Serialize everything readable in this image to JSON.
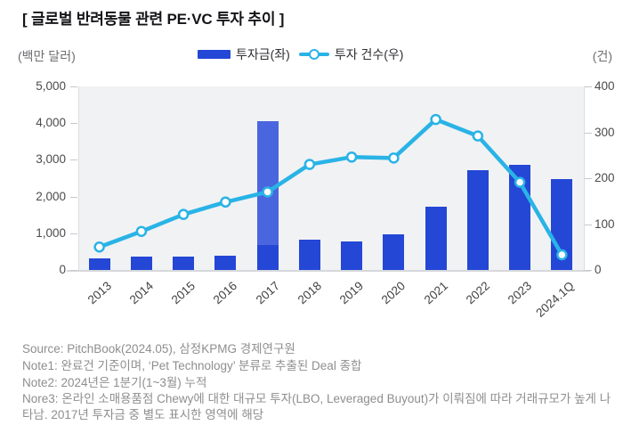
{
  "title": "[ 글로벌 반려동물 관련 PE·VC 투자 추이 ]",
  "axis_unit_left": "(백만 달러)",
  "axis_unit_right": "(건)",
  "legend": {
    "bar_label": "투자금(좌)",
    "line_label": "투자 건수(우)"
  },
  "colors": {
    "bar": "#2447d6",
    "bar_highlight": "#4a66de",
    "line": "#29b3e6",
    "marker_fill": "#ffffff",
    "plot_bg": "#f1f2f4",
    "axis_text": "#4b4b4d",
    "footer_text": "#8e8e90"
  },
  "chart_data": {
    "type": "bar",
    "subtype": "bar+line dual axis",
    "categories": [
      "2013",
      "2014",
      "2015",
      "2016",
      "2017",
      "2018",
      "2019",
      "2020",
      "2021",
      "2022",
      "2023",
      "2024.1Q"
    ],
    "series": [
      {
        "name": "투자금(좌)",
        "type": "bar",
        "axis": "left",
        "values": [
          310,
          360,
          360,
          380,
          4050,
          830,
          770,
          960,
          1730,
          2730,
          2860,
          2480
        ]
      },
      {
        "name": "투자 건수(우)",
        "type": "line",
        "axis": "right",
        "values": [
          50,
          84,
          121,
          148,
          170,
          230,
          246,
          244,
          328,
          292,
          191,
          33
        ]
      }
    ],
    "bar_2017_highlight": {
      "category": "2017",
      "base_value": 680
    },
    "left_axis": {
      "label": "(백만 달러)",
      "min": 0,
      "max": 5000,
      "ticks": [
        "5,000",
        "4,000",
        "3,000",
        "2,000",
        "1,000",
        "0"
      ]
    },
    "right_axis": {
      "label": "(건)",
      "min": 0,
      "max": 400,
      "ticks": [
        "400",
        "300",
        "200",
        "100",
        "0"
      ]
    },
    "grid": false,
    "legend_position": "top-center"
  },
  "footer": {
    "lines": [
      "Source: PitchBook(2024.05), 삼정KPMG 경제연구원",
      "Note1: 완료건 기준이며, ‘Pet Technology’ 분류로 추출된 Deal 종합",
      "Note2: 2024년은 1분기(1~3월) 누적",
      "Nore3: 온라인 소매용품점 Chewy에 대한 대규모 투자(LBO, Leveraged Buyout)가 이뤄짐에 따라 거래규모가 높게 나타남. 2017년 투자금 중 별도 표시한 영역에 해당"
    ]
  }
}
